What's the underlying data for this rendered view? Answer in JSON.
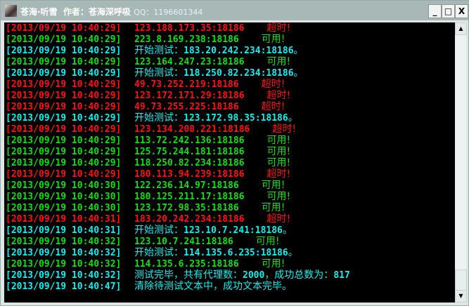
{
  "window": {
    "title": "苍海·听雪  作者：苍海深呼吸 ",
    "qq": "QQ：1196601344",
    "min": "_",
    "max": "□",
    "close": "X"
  },
  "lines": [
    {
      "color": "red",
      "ts": "[2013/09/19 10:40:29]",
      "text": "123.188.173.35:18186",
      "status": "超时!"
    },
    {
      "color": "green",
      "ts": "[2013/09/19 10:40:29]",
      "text": "223.8.169.238:18186",
      "status": "可用!"
    },
    {
      "color": "cyan",
      "ts": "[2013/09/19 10:40:29]",
      "prefix": "开始测试：",
      "text": "183.20.242.234:18186",
      "suffix": "。"
    },
    {
      "color": "green",
      "ts": "[2013/09/19 10:40:29]",
      "text": "123.164.247.23:18186",
      "status": "可用!"
    },
    {
      "color": "cyan",
      "ts": "[2013/09/19 10:40:29]",
      "prefix": "开始测试：",
      "text": "118.250.82.234:18186",
      "suffix": "。"
    },
    {
      "color": "red",
      "ts": "[2013/09/19 10:40:29]",
      "text": "49.73.252.219:18186",
      "status": "超时!"
    },
    {
      "color": "red",
      "ts": "[2013/09/19 10:40:29]",
      "text": "123.172.171.29:18186",
      "status": "超时!"
    },
    {
      "color": "red",
      "ts": "[2013/09/19 10:40:29]",
      "text": "49.73.255.225:18186",
      "status": "超时!"
    },
    {
      "color": "cyan",
      "ts": "[2013/09/19 10:40:29]",
      "prefix": "开始测试：",
      "text": "123.172.98.35:18186",
      "suffix": "。"
    },
    {
      "color": "red",
      "ts": "[2013/09/19 10:40:29]",
      "text": "123.134.208.221:18186",
      "status": "超时!"
    },
    {
      "color": "green",
      "ts": "[2013/09/19 10:40:29]",
      "text": "113.72.242.136:18186",
      "status": "可用!"
    },
    {
      "color": "green",
      "ts": "[2013/09/19 10:40:29]",
      "text": "125.75.244.181:18186",
      "status": "可用!"
    },
    {
      "color": "green",
      "ts": "[2013/09/19 10:40:29]",
      "text": "118.250.82.234:18186",
      "status": "可用!"
    },
    {
      "color": "red",
      "ts": "[2013/09/19 10:40:29]",
      "text": "180.113.94.239:18186",
      "status": "超时!"
    },
    {
      "color": "green",
      "ts": "[2013/09/19 10:40:30]",
      "text": "122.236.14.97:18186",
      "status": "可用!"
    },
    {
      "color": "green",
      "ts": "[2013/09/19 10:40:30]",
      "text": "180.125.211.17:18186",
      "status": "可用!"
    },
    {
      "color": "green",
      "ts": "[2013/09/19 10:40:30]",
      "text": "123.172.98.35:18186",
      "status": "可用!"
    },
    {
      "color": "red",
      "ts": "[2013/09/19 10:40:31]",
      "text": "183.20.242.234:18186",
      "status": "超时!"
    },
    {
      "color": "cyan",
      "ts": "[2013/09/19 10:40:31]",
      "prefix": "开始测试：",
      "text": "123.10.7.241:18186",
      "suffix": "。"
    },
    {
      "color": "green",
      "ts": "[2013/09/19 10:40:32]",
      "text": "123.10.7.241:18186",
      "status": "可用!"
    },
    {
      "color": "cyan",
      "ts": "[2013/09/19 10:40:32]",
      "prefix": "开始测试：",
      "text": "114.135.6.235:18186",
      "suffix": "。"
    },
    {
      "color": "green",
      "ts": "[2013/09/19 10:40:32]",
      "text": "114.135.6.235:18186",
      "status": "可用!"
    },
    {
      "color": "cyan",
      "ts": "[2013/09/19 10:40:32]",
      "prefix": "测试完毕，共有代理数：",
      "text": "2000",
      "suffix": "，成功总数为：",
      "tail": "817"
    },
    {
      "color": "cyan",
      "ts": "[2013/09/19 10:40:47]",
      "prefix": "清除待测试文本中，成功文本完毕。"
    }
  ],
  "colors": {
    "red": "#ff1010",
    "green": "#10e010",
    "cyan": "#10f0f0",
    "background": "#000000"
  },
  "scrollbar": {
    "position": "bottom"
  }
}
